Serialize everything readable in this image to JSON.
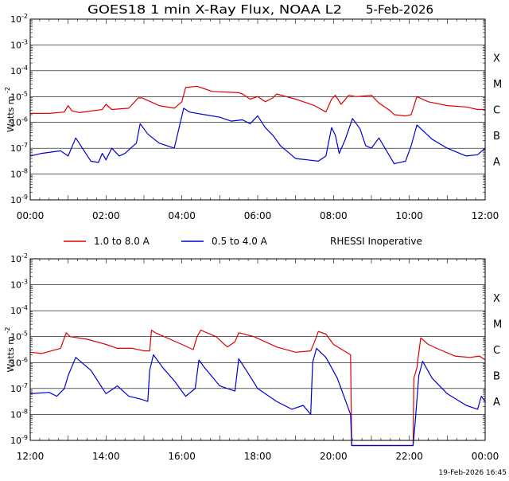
{
  "title": "GOES18 1 min X-Ray Flux, NOAA L2",
  "date": "5-Feb-2026",
  "footer_timestamp": "19-Feb-2026 16:45",
  "legend": {
    "long_label": "1.0 to 8.0 A",
    "short_label": "0.5 to 4.0 A",
    "note": "RHESSI Inoperative"
  },
  "colors": {
    "long": "#e00000",
    "short": "#0000d0",
    "grid": "#000000"
  },
  "chart_data": [
    {
      "type": "line",
      "panel": "top",
      "ylabel": "Watts m",
      "ylabel_sup": "-2",
      "y_scale": "log",
      "ylim_exponent": [
        -9,
        -2
      ],
      "ytick_exponents": [
        -2,
        -3,
        -4,
        -5,
        -6,
        -7,
        -8,
        -9
      ],
      "flare_classes": [
        "X",
        "M",
        "C",
        "B",
        "A"
      ],
      "xlim_hours": [
        0,
        12
      ],
      "xtick_labels": [
        "00:00",
        "02:00",
        "04:00",
        "06:00",
        "08:00",
        "10:00",
        "12:00"
      ],
      "series": [
        {
          "name": "1.0 to 8.0 A",
          "x": [
            0,
            0.5,
            0.9,
            1.0,
            1.1,
            1.3,
            1.9,
            2.0,
            2.15,
            2.6,
            2.85,
            2.95,
            3.4,
            3.8,
            4.0,
            4.1,
            4.4,
            4.8,
            5.5,
            5.6,
            5.8,
            6.0,
            6.2,
            6.4,
            6.5,
            7.0,
            7.5,
            7.8,
            7.95,
            8.05,
            8.2,
            8.4,
            8.6,
            9.0,
            9.2,
            9.5,
            9.6,
            9.9,
            10.05,
            10.2,
            10.5,
            11.0,
            11.5,
            11.8,
            12.0
          ],
          "log_y": [
            -5.65,
            -5.65,
            -5.6,
            -5.35,
            -5.55,
            -5.62,
            -5.5,
            -5.3,
            -5.5,
            -5.45,
            -5.05,
            -5.05,
            -5.35,
            -5.45,
            -5.2,
            -4.65,
            -4.6,
            -4.8,
            -4.85,
            -4.9,
            -5.1,
            -5.0,
            -5.2,
            -5.05,
            -4.9,
            -5.1,
            -5.35,
            -5.6,
            -5.1,
            -4.95,
            -5.3,
            -4.95,
            -5.0,
            -4.95,
            -5.25,
            -5.55,
            -5.7,
            -5.75,
            -5.7,
            -5.0,
            -5.2,
            -5.35,
            -5.4,
            -5.5,
            -5.5
          ]
        },
        {
          "name": "0.5 to 4.0 A",
          "x": [
            0,
            0.3,
            0.8,
            1.0,
            1.2,
            1.6,
            1.8,
            1.9,
            2.0,
            2.15,
            2.35,
            2.5,
            2.8,
            2.9,
            3.1,
            3.4,
            3.8,
            4.05,
            4.2,
            4.6,
            5.0,
            5.3,
            5.6,
            5.8,
            6.0,
            6.2,
            6.4,
            6.6,
            7.0,
            7.3,
            7.6,
            7.8,
            7.95,
            8.05,
            8.15,
            8.3,
            8.5,
            8.7,
            8.85,
            9.0,
            9.2,
            9.4,
            9.6,
            9.9,
            10.05,
            10.2,
            10.6,
            11.0,
            11.5,
            11.8,
            12.0
          ],
          "log_y": [
            -7.3,
            -7.2,
            -7.1,
            -7.3,
            -6.6,
            -7.5,
            -7.55,
            -7.2,
            -7.45,
            -7.0,
            -7.3,
            -7.2,
            -6.8,
            -6.05,
            -6.45,
            -6.8,
            -7.0,
            -5.45,
            -5.6,
            -5.7,
            -5.8,
            -5.95,
            -5.9,
            -6.05,
            -5.75,
            -6.2,
            -6.5,
            -6.9,
            -7.4,
            -7.45,
            -7.5,
            -7.3,
            -6.2,
            -6.5,
            -7.2,
            -6.7,
            -5.85,
            -6.25,
            -6.9,
            -7.0,
            -6.6,
            -7.1,
            -7.6,
            -7.5,
            -6.9,
            -6.1,
            -6.65,
            -7.0,
            -7.3,
            -7.25,
            -7.0
          ]
        }
      ]
    },
    {
      "type": "line",
      "panel": "bottom",
      "ylabel": "Watts m",
      "ylabel_sup": "-2",
      "y_scale": "log",
      "ylim_exponent": [
        -9,
        -2
      ],
      "ytick_exponents": [
        -2,
        -3,
        -4,
        -5,
        -6,
        -7,
        -8,
        -9
      ],
      "flare_classes": [
        "X",
        "M",
        "C",
        "B",
        "A"
      ],
      "xlim_hours": [
        12,
        24
      ],
      "xtick_labels": [
        "12:00",
        "14:00",
        "16:00",
        "18:00",
        "20:00",
        "22:00",
        "00:00"
      ],
      "series": [
        {
          "name": "1.0 to 8.0 A",
          "x": [
            12.0,
            12.3,
            12.8,
            12.95,
            13.05,
            13.5,
            14.0,
            14.3,
            14.7,
            15.0,
            15.15,
            15.2,
            15.3,
            16.0,
            16.3,
            16.4,
            16.5,
            16.9,
            17.2,
            17.4,
            17.5,
            17.9,
            18.5,
            19.0,
            19.4,
            19.5,
            19.6,
            19.8,
            20.0,
            20.45,
            20.48,
            22.1,
            22.12,
            22.2,
            22.3,
            22.5,
            22.8,
            23.2,
            23.6,
            23.85,
            24.0
          ],
          "log_y": [
            -5.6,
            -5.65,
            -5.45,
            -4.85,
            -5.0,
            -5.1,
            -5.3,
            -5.45,
            -5.45,
            -5.55,
            -5.55,
            -4.75,
            -4.85,
            -5.3,
            -5.5,
            -5.0,
            -4.75,
            -5.0,
            -5.4,
            -5.2,
            -4.85,
            -5.0,
            -5.4,
            -5.6,
            -5.55,
            -5.2,
            -4.8,
            -4.9,
            -5.3,
            -5.7,
            -9.2,
            -9.2,
            -6.6,
            -6.2,
            -5.05,
            -5.3,
            -5.5,
            -5.75,
            -5.8,
            -5.75,
            -5.9
          ]
        },
        {
          "name": "0.5 to 4.0 A",
          "x": [
            12.0,
            12.5,
            12.7,
            12.9,
            13.0,
            13.2,
            13.6,
            14.0,
            14.3,
            14.6,
            14.9,
            15.1,
            15.15,
            15.25,
            15.5,
            15.8,
            16.1,
            16.35,
            16.45,
            16.6,
            17.0,
            17.4,
            17.5,
            17.7,
            18.0,
            18.5,
            18.9,
            19.2,
            19.4,
            19.45,
            19.55,
            19.8,
            20.1,
            20.45,
            20.48,
            22.1,
            22.15,
            22.25,
            22.35,
            22.6,
            23.0,
            23.5,
            23.8,
            23.9,
            24.0
          ],
          "log_y": [
            -7.2,
            -7.15,
            -7.3,
            -7.0,
            -6.5,
            -5.8,
            -6.3,
            -7.2,
            -6.9,
            -7.3,
            -7.4,
            -7.5,
            -6.3,
            -5.7,
            -6.2,
            -6.7,
            -7.3,
            -7.0,
            -5.9,
            -6.2,
            -6.9,
            -7.1,
            -5.85,
            -6.3,
            -7.0,
            -7.5,
            -7.8,
            -7.65,
            -8.0,
            -6.0,
            -5.45,
            -5.8,
            -6.6,
            -8.0,
            -9.2,
            -9.2,
            -8.4,
            -6.5,
            -5.95,
            -6.6,
            -7.2,
            -7.65,
            -7.8,
            -7.3,
            -7.5
          ]
        }
      ]
    }
  ]
}
